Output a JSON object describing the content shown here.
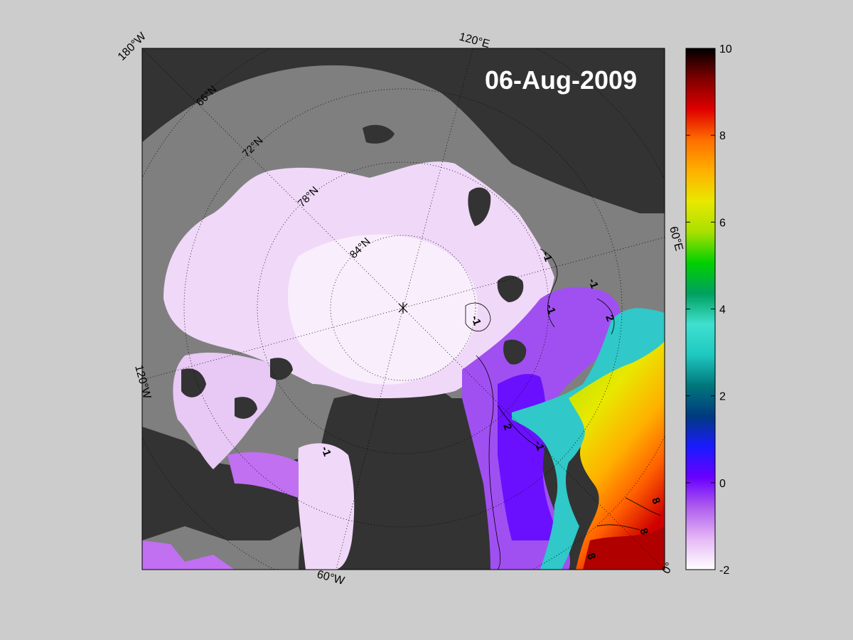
{
  "map": {
    "date_label": "06-Aug-2009",
    "longitude_labels": {
      "lon_180w": "180°W",
      "lon_120e": "120°E",
      "lon_60e": "60°E",
      "lon_120w": "120°W",
      "lon_60w": "60°W",
      "lon_0": "0°"
    },
    "latitude_labels": {
      "lat_66n": "66°N",
      "lat_72n": "72°N",
      "lat_78n": "78°N",
      "lat_84n": "84°N"
    },
    "contour_labels": {
      "c1": "-1",
      "c2": "2",
      "c3": "-1",
      "c4": "-1",
      "c5": "2",
      "c6": "-1",
      "c7": "8",
      "c8": "8",
      "c9": "8",
      "c10": "-1",
      "c11": "-1"
    },
    "colors": {
      "land": "#333333",
      "shelf": "#7f7f7f",
      "ice": "#f2d8f8",
      "pole_marker": "#000000"
    }
  },
  "colorbar": {
    "ticks": [
      "10",
      "8",
      "6",
      "4",
      "2",
      "0",
      "-2"
    ],
    "range": [
      -2,
      10
    ],
    "colormap": [
      "#ffffff",
      "#e6b8f5",
      "#b060ee",
      "#6a00ff",
      "#1a1aff",
      "#003a80",
      "#00777a",
      "#1ec8c0",
      "#40e0d0",
      "#00a060",
      "#00d000",
      "#a8e000",
      "#e8e800",
      "#ffb000",
      "#ff7000",
      "#e00000",
      "#800000",
      "#000000"
    ]
  }
}
